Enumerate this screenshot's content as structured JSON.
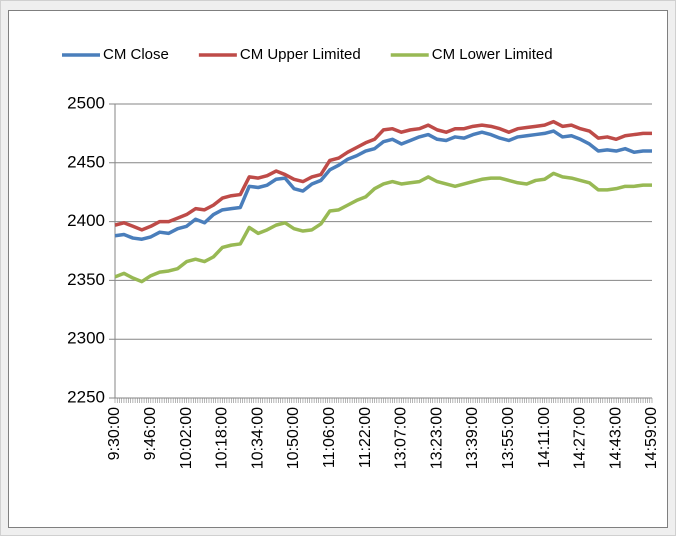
{
  "chart_data": {
    "type": "line",
    "categories": [
      "9:30:00",
      null,
      null,
      null,
      "9:46:00",
      null,
      null,
      null,
      "10:02:00",
      null,
      null,
      null,
      "10:18:00",
      null,
      null,
      null,
      "10:34:00",
      null,
      null,
      null,
      "10:50:00",
      null,
      null,
      null,
      "11:06:00",
      null,
      null,
      null,
      "11:22:00",
      null,
      null,
      null,
      "13:07:00",
      null,
      null,
      null,
      "13:23:00",
      null,
      null,
      null,
      "13:39:00",
      null,
      null,
      null,
      "13:55:00",
      null,
      null,
      null,
      "14:11:00",
      null,
      null,
      null,
      "14:27:00",
      null,
      null,
      null,
      "14:43:00",
      null,
      null,
      null,
      "14:59:00"
    ],
    "series": [
      {
        "name": "CM Close",
        "color": "#4a7ebb",
        "values": [
          2388,
          2389,
          2386,
          2385,
          2387,
          2391,
          2390,
          2394,
          2396,
          2402,
          2399,
          2406,
          2410,
          2411,
          2412,
          2430,
          2429,
          2431,
          2436,
          2437,
          2428,
          2426,
          2432,
          2435,
          2444,
          2448,
          2453,
          2456,
          2460,
          2462,
          2468,
          2470,
          2466,
          2469,
          2472,
          2474,
          2470,
          2469,
          2472,
          2471,
          2474,
          2476,
          2474,
          2471,
          2469,
          2472,
          2473,
          2474,
          2475,
          2477,
          2472,
          2473,
          2470,
          2466,
          2460,
          2461,
          2460,
          2462,
          2459,
          2460,
          2460
        ]
      },
      {
        "name": "CM Upper Limited",
        "color": "#be4b48",
        "values": [
          2397,
          2399,
          2396,
          2393,
          2396,
          2400,
          2400,
          2403,
          2406,
          2411,
          2410,
          2414,
          2420,
          2422,
          2423,
          2438,
          2437,
          2439,
          2443,
          2440,
          2436,
          2434,
          2438,
          2440,
          2452,
          2454,
          2459,
          2463,
          2467,
          2470,
          2478,
          2479,
          2476,
          2478,
          2479,
          2482,
          2478,
          2476,
          2479,
          2479,
          2481,
          2482,
          2481,
          2479,
          2476,
          2479,
          2480,
          2481,
          2482,
          2485,
          2481,
          2482,
          2479,
          2477,
          2471,
          2472,
          2470,
          2473,
          2474,
          2475,
          2475
        ]
      },
      {
        "name": "CM Lower Limited",
        "color": "#98b954",
        "values": [
          2353,
          2356,
          2352,
          2349,
          2354,
          2357,
          2358,
          2360,
          2366,
          2368,
          2366,
          2370,
          2378,
          2380,
          2381,
          2395,
          2390,
          2393,
          2397,
          2399,
          2394,
          2392,
          2393,
          2398,
          2409,
          2410,
          2414,
          2418,
          2421,
          2428,
          2432,
          2434,
          2432,
          2433,
          2434,
          2438,
          2434,
          2432,
          2430,
          2432,
          2434,
          2436,
          2437,
          2437,
          2435,
          2433,
          2432,
          2435,
          2436,
          2441,
          2438,
          2437,
          2435,
          2433,
          2427,
          2427,
          2428,
          2430,
          2430,
          2431,
          2431
        ]
      }
    ],
    "ylim": [
      2250,
      2500
    ],
    "yticks": [
      2250,
      2300,
      2350,
      2400,
      2450,
      2500
    ],
    "grid": true,
    "legend": "top"
  }
}
